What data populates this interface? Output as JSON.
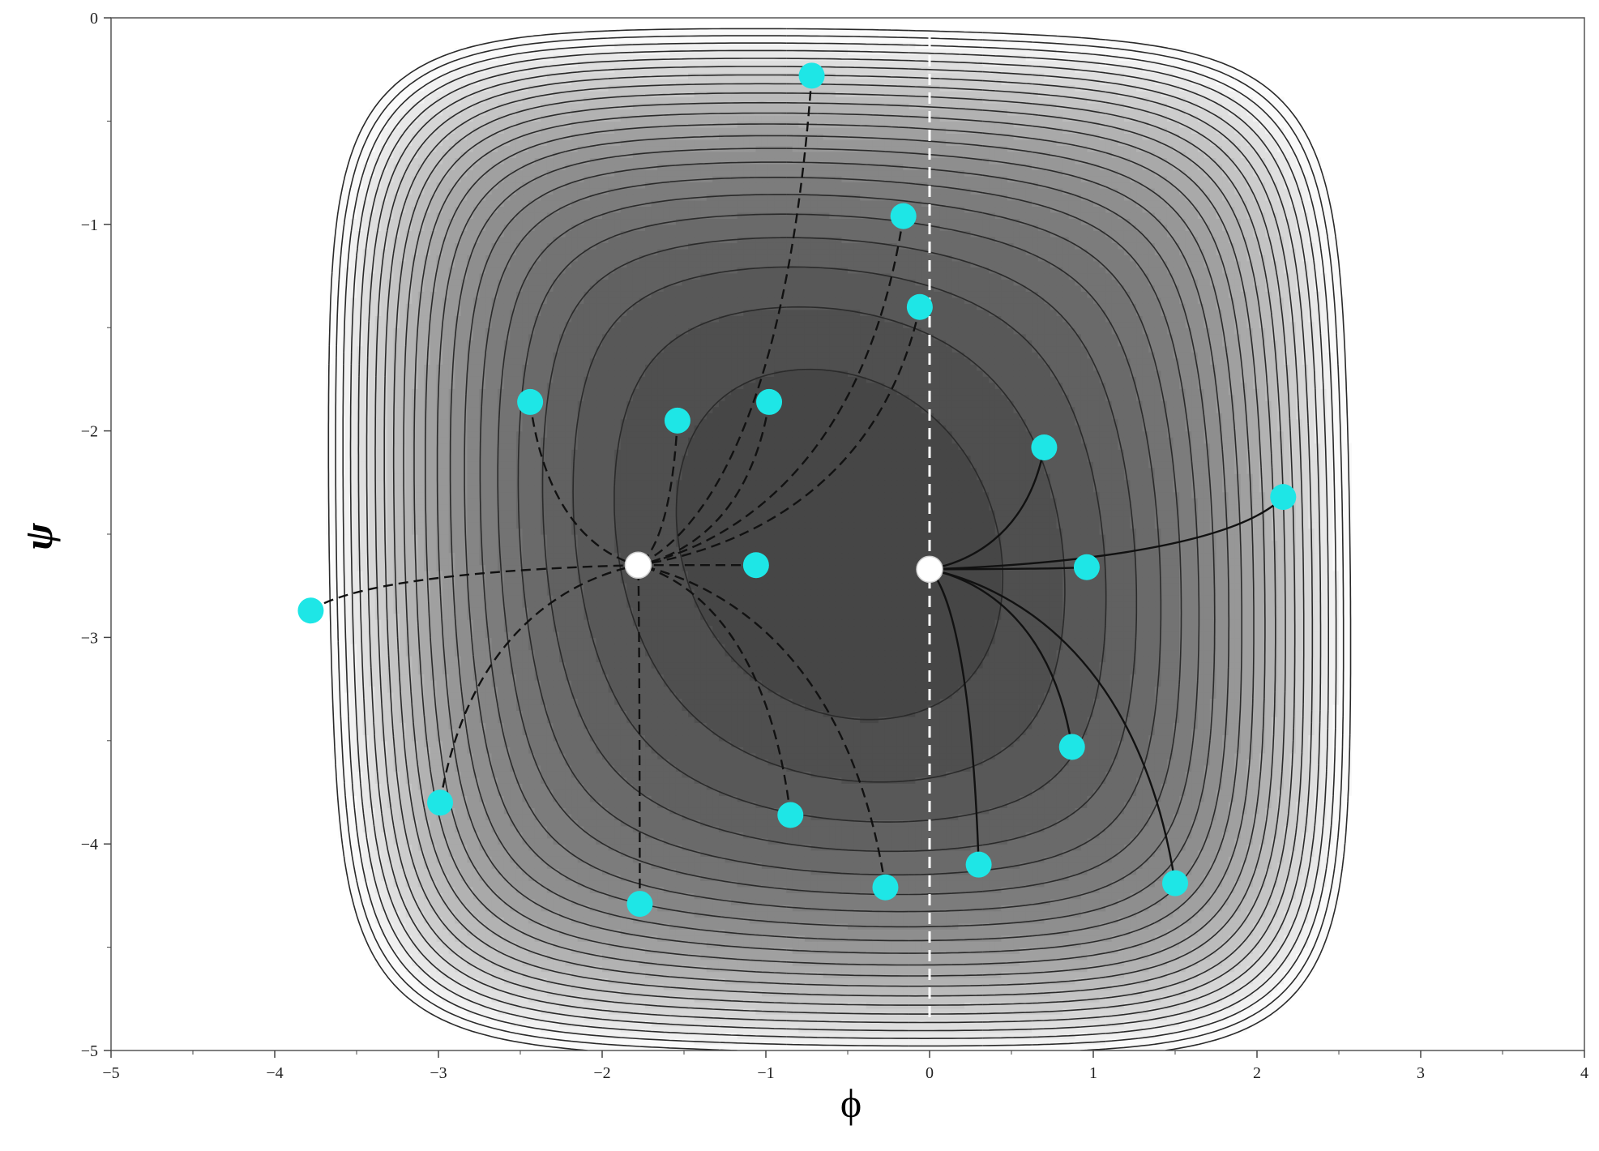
{
  "chart_data": {
    "type": "contour",
    "title": "",
    "xlabel": "ϕ",
    "ylabel": "ψ",
    "xlim": [
      -5,
      4
    ],
    "ylim": [
      -5,
      0
    ],
    "x_ticks": [
      "−5",
      "−4",
      "−3",
      "−2",
      "−1",
      "0",
      "1",
      "2",
      "3",
      "4"
    ],
    "y_ticks": [
      "0",
      "−1",
      "−2",
      "−3",
      "−4",
      "−5"
    ],
    "grid": true,
    "minima": [
      {
        "x": -1.78,
        "y": -2.65
      },
      {
        "x": 0.0,
        "y": -2.67
      }
    ],
    "dividing_line_x": 0.0,
    "start_points": [
      {
        "x": -0.72,
        "y": -0.28,
        "minimum": 0
      },
      {
        "x": -0.16,
        "y": -0.96,
        "minimum": 0
      },
      {
        "x": -0.06,
        "y": -1.4,
        "minimum": 0
      },
      {
        "x": -2.44,
        "y": -1.86,
        "minimum": 0
      },
      {
        "x": -1.54,
        "y": -1.95,
        "minimum": 0
      },
      {
        "x": -0.98,
        "y": -1.86,
        "minimum": 0
      },
      {
        "x": -1.06,
        "y": -2.65,
        "minimum": 0
      },
      {
        "x": -3.78,
        "y": -2.87,
        "minimum": 0
      },
      {
        "x": -2.99,
        "y": -3.8,
        "minimum": 0
      },
      {
        "x": -0.85,
        "y": -3.86,
        "minimum": 0
      },
      {
        "x": -1.77,
        "y": -4.29,
        "minimum": 0
      },
      {
        "x": -0.27,
        "y": -4.21,
        "minimum": 0
      },
      {
        "x": 0.7,
        "y": -2.08,
        "minimum": 1
      },
      {
        "x": 2.16,
        "y": -2.32,
        "minimum": 1
      },
      {
        "x": 0.96,
        "y": -2.66,
        "minimum": 1
      },
      {
        "x": 0.87,
        "y": -3.53,
        "minimum": 1
      },
      {
        "x": 0.3,
        "y": -4.1,
        "minimum": 1
      },
      {
        "x": 1.5,
        "y": -4.19,
        "minimum": 1
      }
    ],
    "colors": {
      "start_point": "#1ee6e6",
      "minimum": "#ffffff",
      "trajectory": "#111111",
      "contour_line": "#2a2a2a",
      "dividing_line": "#ffffff"
    }
  }
}
